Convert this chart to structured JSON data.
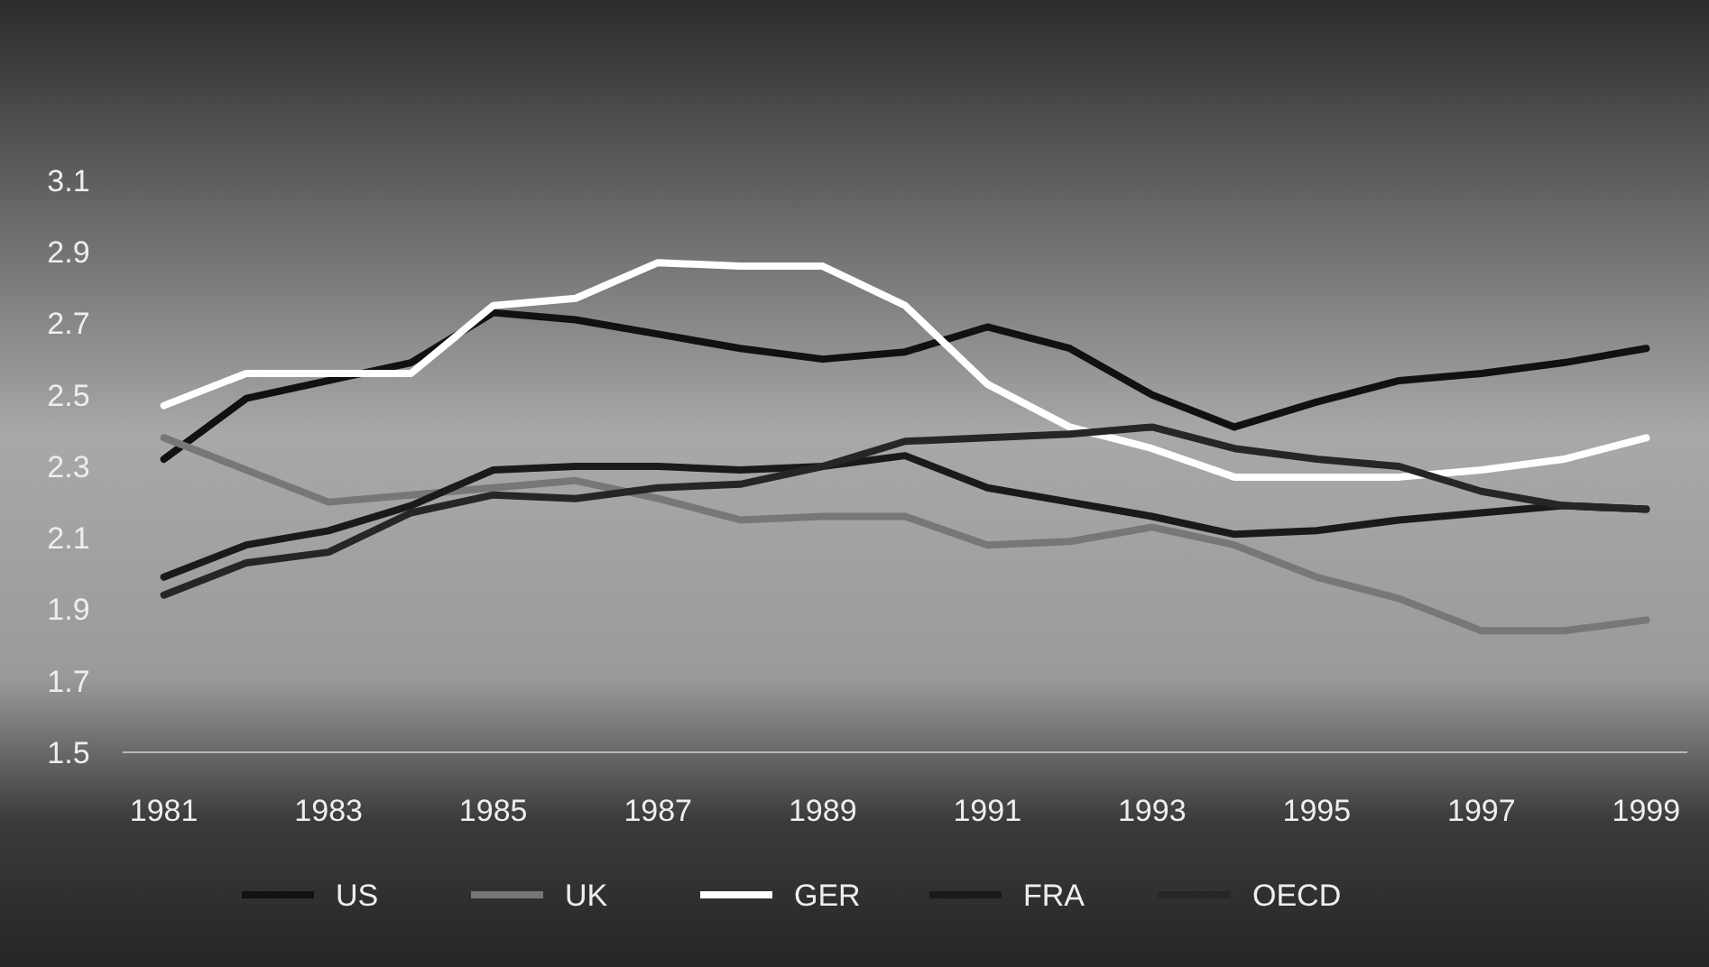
{
  "chart_data": {
    "type": "line",
    "x": [
      1981,
      1982,
      1983,
      1984,
      1985,
      1986,
      1987,
      1988,
      1989,
      1990,
      1991,
      1992,
      1993,
      1994,
      1995,
      1996,
      1997,
      1998,
      1999
    ],
    "series": [
      {
        "name": "US",
        "color": "#111111",
        "values": [
          2.32,
          2.49,
          2.54,
          2.59,
          2.73,
          2.71,
          2.67,
          2.63,
          2.6,
          2.62,
          2.69,
          2.63,
          2.5,
          2.41,
          2.48,
          2.54,
          2.56,
          2.59,
          2.63
        ]
      },
      {
        "name": "UK",
        "color": "#777777",
        "values": [
          2.38,
          2.29,
          2.2,
          2.22,
          2.24,
          2.26,
          2.21,
          2.15,
          2.16,
          2.16,
          2.08,
          2.09,
          2.13,
          2.08,
          1.99,
          1.93,
          1.84,
          1.84,
          1.87
        ]
      },
      {
        "name": "GER",
        "color": "#ffffff",
        "values": [
          2.47,
          2.56,
          2.56,
          2.56,
          2.75,
          2.77,
          2.87,
          2.86,
          2.86,
          2.75,
          2.53,
          2.41,
          2.35,
          2.27,
          2.27,
          2.27,
          2.29,
          2.32,
          2.38
        ]
      },
      {
        "name": "FRA",
        "color": "#1a1a1a",
        "values": [
          1.99,
          2.08,
          2.12,
          2.19,
          2.29,
          2.3,
          2.3,
          2.29,
          2.3,
          2.33,
          2.24,
          2.2,
          2.16,
          2.11,
          2.12,
          2.15,
          2.17,
          2.19,
          2.18
        ]
      },
      {
        "name": "OECD",
        "color": "#262626",
        "values": [
          1.94,
          2.03,
          2.06,
          2.17,
          2.22,
          2.21,
          2.24,
          2.25,
          2.3,
          2.37,
          2.38,
          2.39,
          2.41,
          2.35,
          2.32,
          2.3,
          2.23,
          2.19,
          2.18
        ]
      }
    ],
    "xlim": [
      1980.5,
      1999.5
    ],
    "xticks": [
      1981,
      1983,
      1985,
      1987,
      1989,
      1991,
      1993,
      1995,
      1997,
      1999
    ],
    "ylim": [
      1.5,
      3.1
    ],
    "yticks": [
      1.5,
      1.7,
      1.9,
      2.1,
      2.3,
      2.5,
      2.7,
      2.9,
      3.1
    ],
    "grid": false,
    "legend": "bottom",
    "marker": "none",
    "line_style": "solid"
  }
}
